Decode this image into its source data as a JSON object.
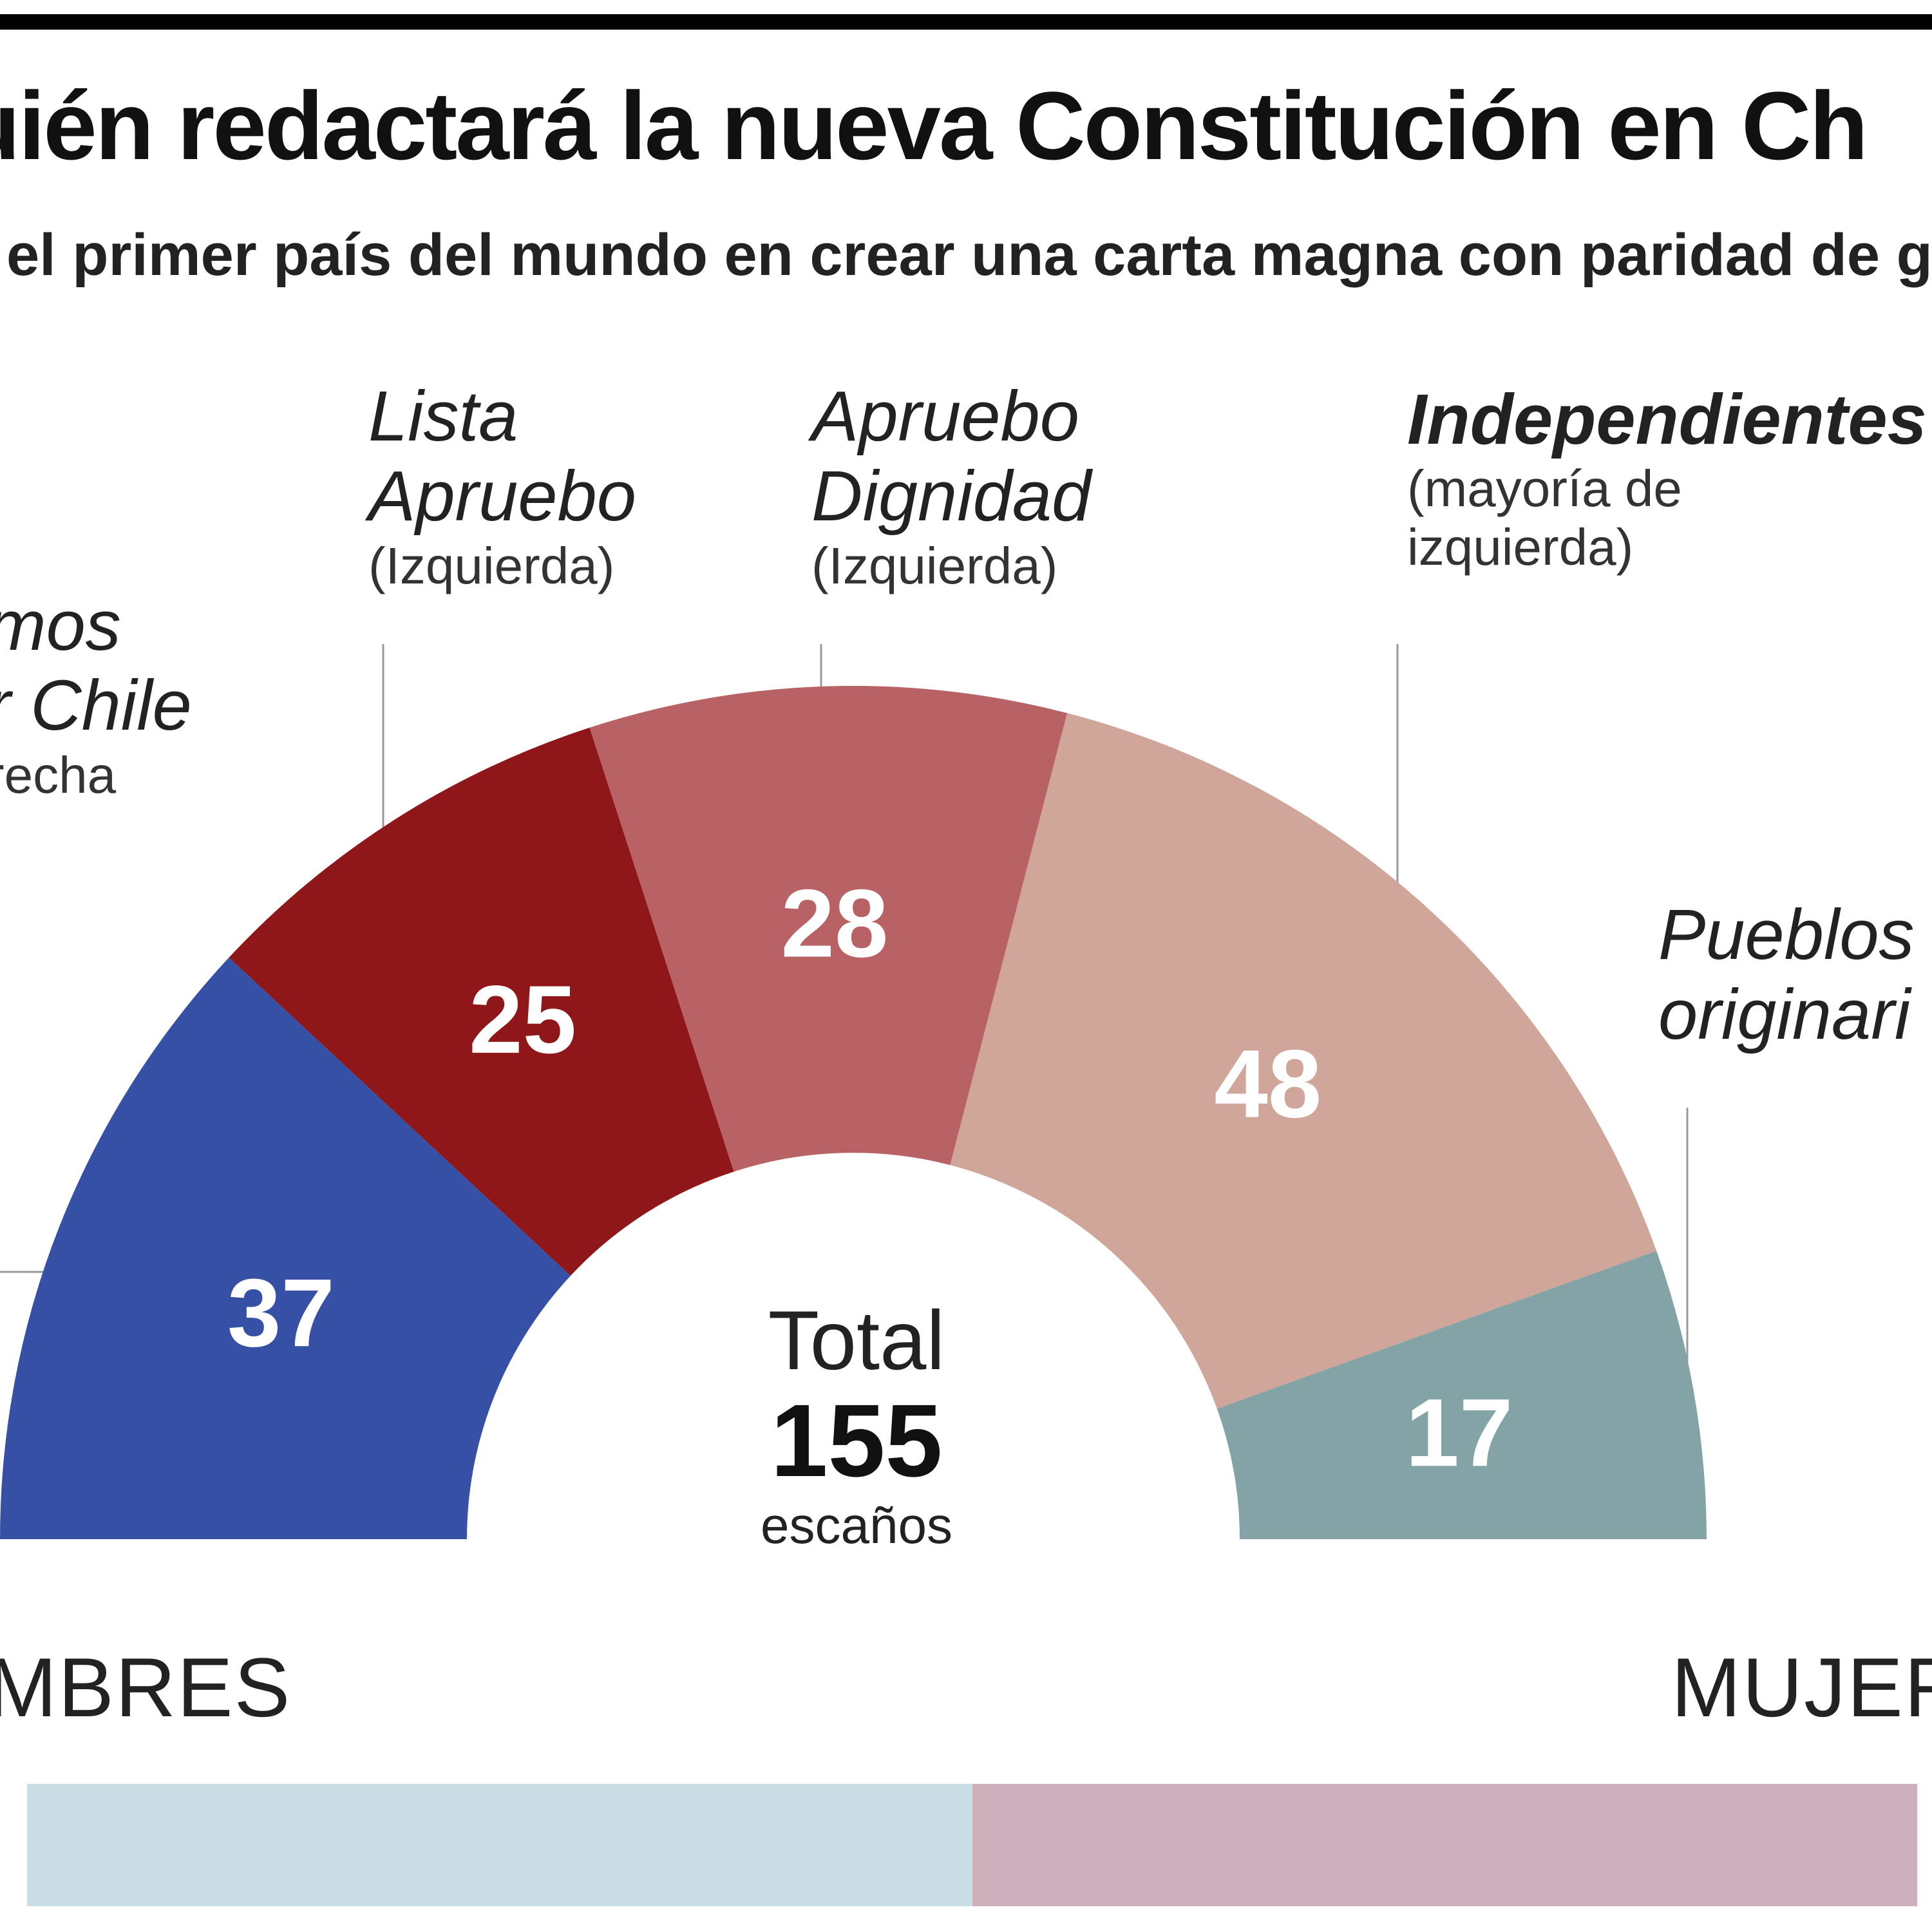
{
  "title": "uién redactará la nueva Constitución en Ch",
  "subtitle": "el primer país del mundo en crear una carta magna con paridad de gé",
  "chart_data": {
    "type": "pie",
    "variant": "semicircle-parliament",
    "total_label": "Total",
    "total": 155,
    "total_unit": "escaños",
    "groups": [
      {
        "name": "mos\nr Chile",
        "note": "recha",
        "seats": 37,
        "color": "#3650a5"
      },
      {
        "name": "Lista\nApruebo",
        "note": "(Izquierda)",
        "seats": 25,
        "color": "#8f1719"
      },
      {
        "name": "Apruebo\nDignidad",
        "note": "(Izquierda)",
        "seats": 28,
        "color": "#b86265"
      },
      {
        "name": "Independientes",
        "note": "(mayoría de\nizquierda)",
        "seats": 48,
        "color": "#d0a59a"
      },
      {
        "name": "Pueblos\noriginari",
        "note": "",
        "seats": 17,
        "color": "#84a3a6"
      }
    ],
    "gender": {
      "left_label": "MBRES",
      "right_label": "MUJER",
      "left_color": "#cadde4",
      "right_color": "#cdb0bc",
      "left_share": 0.5
    }
  }
}
